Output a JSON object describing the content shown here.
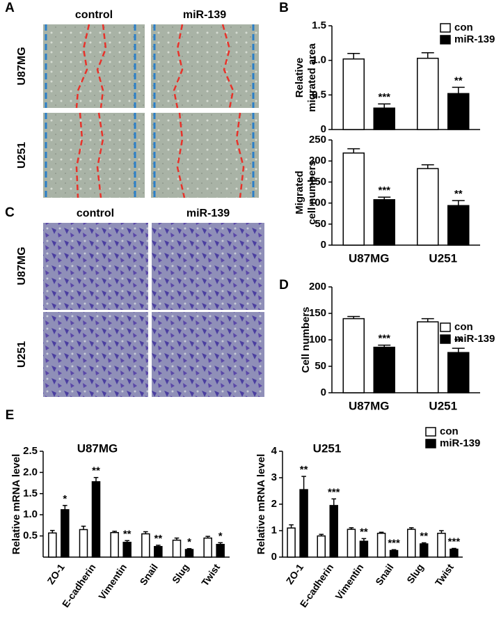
{
  "panel_labels": [
    "A",
    "B",
    "C",
    "D",
    "E"
  ],
  "images": [
    {
      "columns": [
        "control",
        "miR-139"
      ],
      "rows": [
        "U87MG",
        "U251"
      ]
    },
    {
      "columns": [
        "control",
        "miR-139"
      ],
      "rows": [
        "U87MG",
        "U251"
      ]
    }
  ],
  "chart_data": [
    {
      "type": "bar",
      "ylabel": [
        "Relative",
        "migrated area"
      ],
      "categories": [
        null,
        null
      ],
      "series": [
        {
          "name": "con",
          "color": "#ffffff",
          "values": [
            1.02,
            1.03
          ],
          "errors": [
            0.08,
            0.08
          ]
        },
        {
          "name": "miR-139",
          "color": "#000000",
          "values": [
            0.31,
            0.52
          ],
          "errors": [
            0.06,
            0.09
          ]
        }
      ],
      "annotations": [
        "***",
        "**"
      ],
      "ylim": [
        0,
        1.5
      ],
      "yticks": [
        0,
        0.5,
        {
          "value": 1,
          "label": "1.0"
        },
        1.5
      ],
      "legend": "upper right"
    },
    {
      "type": "bar",
      "ylabel": [
        "Migrated",
        "cell numbers"
      ],
      "categories": [
        "U87MG",
        "U251"
      ],
      "series": [
        {
          "name": null,
          "color": "#ffffff",
          "values": [
            219,
            182
          ],
          "errors": [
            10,
            9
          ]
        },
        {
          "name": null,
          "color": "#000000",
          "values": [
            108,
            94
          ],
          "errors": [
            6,
            12
          ]
        }
      ],
      "annotations": [
        "***",
        "**"
      ],
      "ylim": [
        0,
        250
      ],
      "yticks": [
        0,
        50,
        100,
        150,
        200,
        250
      ]
    },
    {
      "type": "bar",
      "ylabel": [
        "Cell numbers"
      ],
      "categories": [
        "U87MG",
        "U251"
      ],
      "series": [
        {
          "name": "con",
          "color": "#ffffff",
          "values": [
            140,
            134
          ],
          "errors": [
            4,
            6
          ]
        },
        {
          "name": "miR-139",
          "color": "#000000",
          "values": [
            86,
            76
          ],
          "errors": [
            4,
            8
          ]
        }
      ],
      "annotations": [
        "***",
        "**"
      ],
      "ylim": [
        0,
        200
      ],
      "yticks": [
        0,
        50,
        100,
        150,
        200
      ],
      "legend": "upper right"
    },
    {
      "type": "bar",
      "title": "U87MG",
      "ylabel": [
        "Relative mRNA level"
      ],
      "categories": [
        "ZO-1",
        "E-cadherin",
        "Vimentin",
        "Snail",
        "Slug",
        "Twist"
      ],
      "series": [
        {
          "name": null,
          "color": "#ffffff",
          "values": [
            0.57,
            0.65,
            0.58,
            0.55,
            0.4,
            0.45
          ],
          "errors": [
            0.06,
            0.08,
            0.03,
            0.05,
            0.05,
            0.04
          ]
        },
        {
          "name": null,
          "color": "#000000",
          "values": [
            1.12,
            1.78,
            0.35,
            0.25,
            0.18,
            0.3
          ],
          "errors": [
            0.1,
            0.1,
            0.04,
            0.03,
            0.02,
            0.04
          ]
        }
      ],
      "annotations": [
        "*",
        "**",
        "**",
        "**",
        "*",
        "*"
      ],
      "ylim": [
        0,
        2.5
      ],
      "yticks": [
        0.5,
        {
          "value": 1,
          "label": "1.0"
        },
        1.5,
        {
          "value": 2,
          "label": "2.0"
        },
        2.5
      ]
    },
    {
      "type": "bar",
      "title": "U251",
      "ylabel": [
        "Relative mRNA level"
      ],
      "categories": [
        "ZO-1",
        "E-cadherin",
        "Vimentin",
        "Snail",
        "Slug",
        "Twist"
      ],
      "series": [
        {
          "name": "con",
          "color": "#ffffff",
          "values": [
            1.1,
            0.8,
            1.05,
            0.9,
            1.05,
            0.9
          ],
          "errors": [
            0.12,
            0.06,
            0.06,
            0.04,
            0.06,
            0.1
          ]
        },
        {
          "name": "miR-139",
          "color": "#000000",
          "values": [
            2.55,
            1.95,
            0.6,
            0.25,
            0.5,
            0.3
          ],
          "errors": [
            0.5,
            0.25,
            0.1,
            0.03,
            0.04,
            0.03
          ]
        }
      ],
      "annotations": [
        "**",
        "***",
        "**",
        "***",
        "**",
        "***"
      ],
      "ylim": [
        0,
        4
      ],
      "yticks": [
        0,
        1,
        2,
        3,
        4
      ],
      "legend": "upper right"
    }
  ]
}
